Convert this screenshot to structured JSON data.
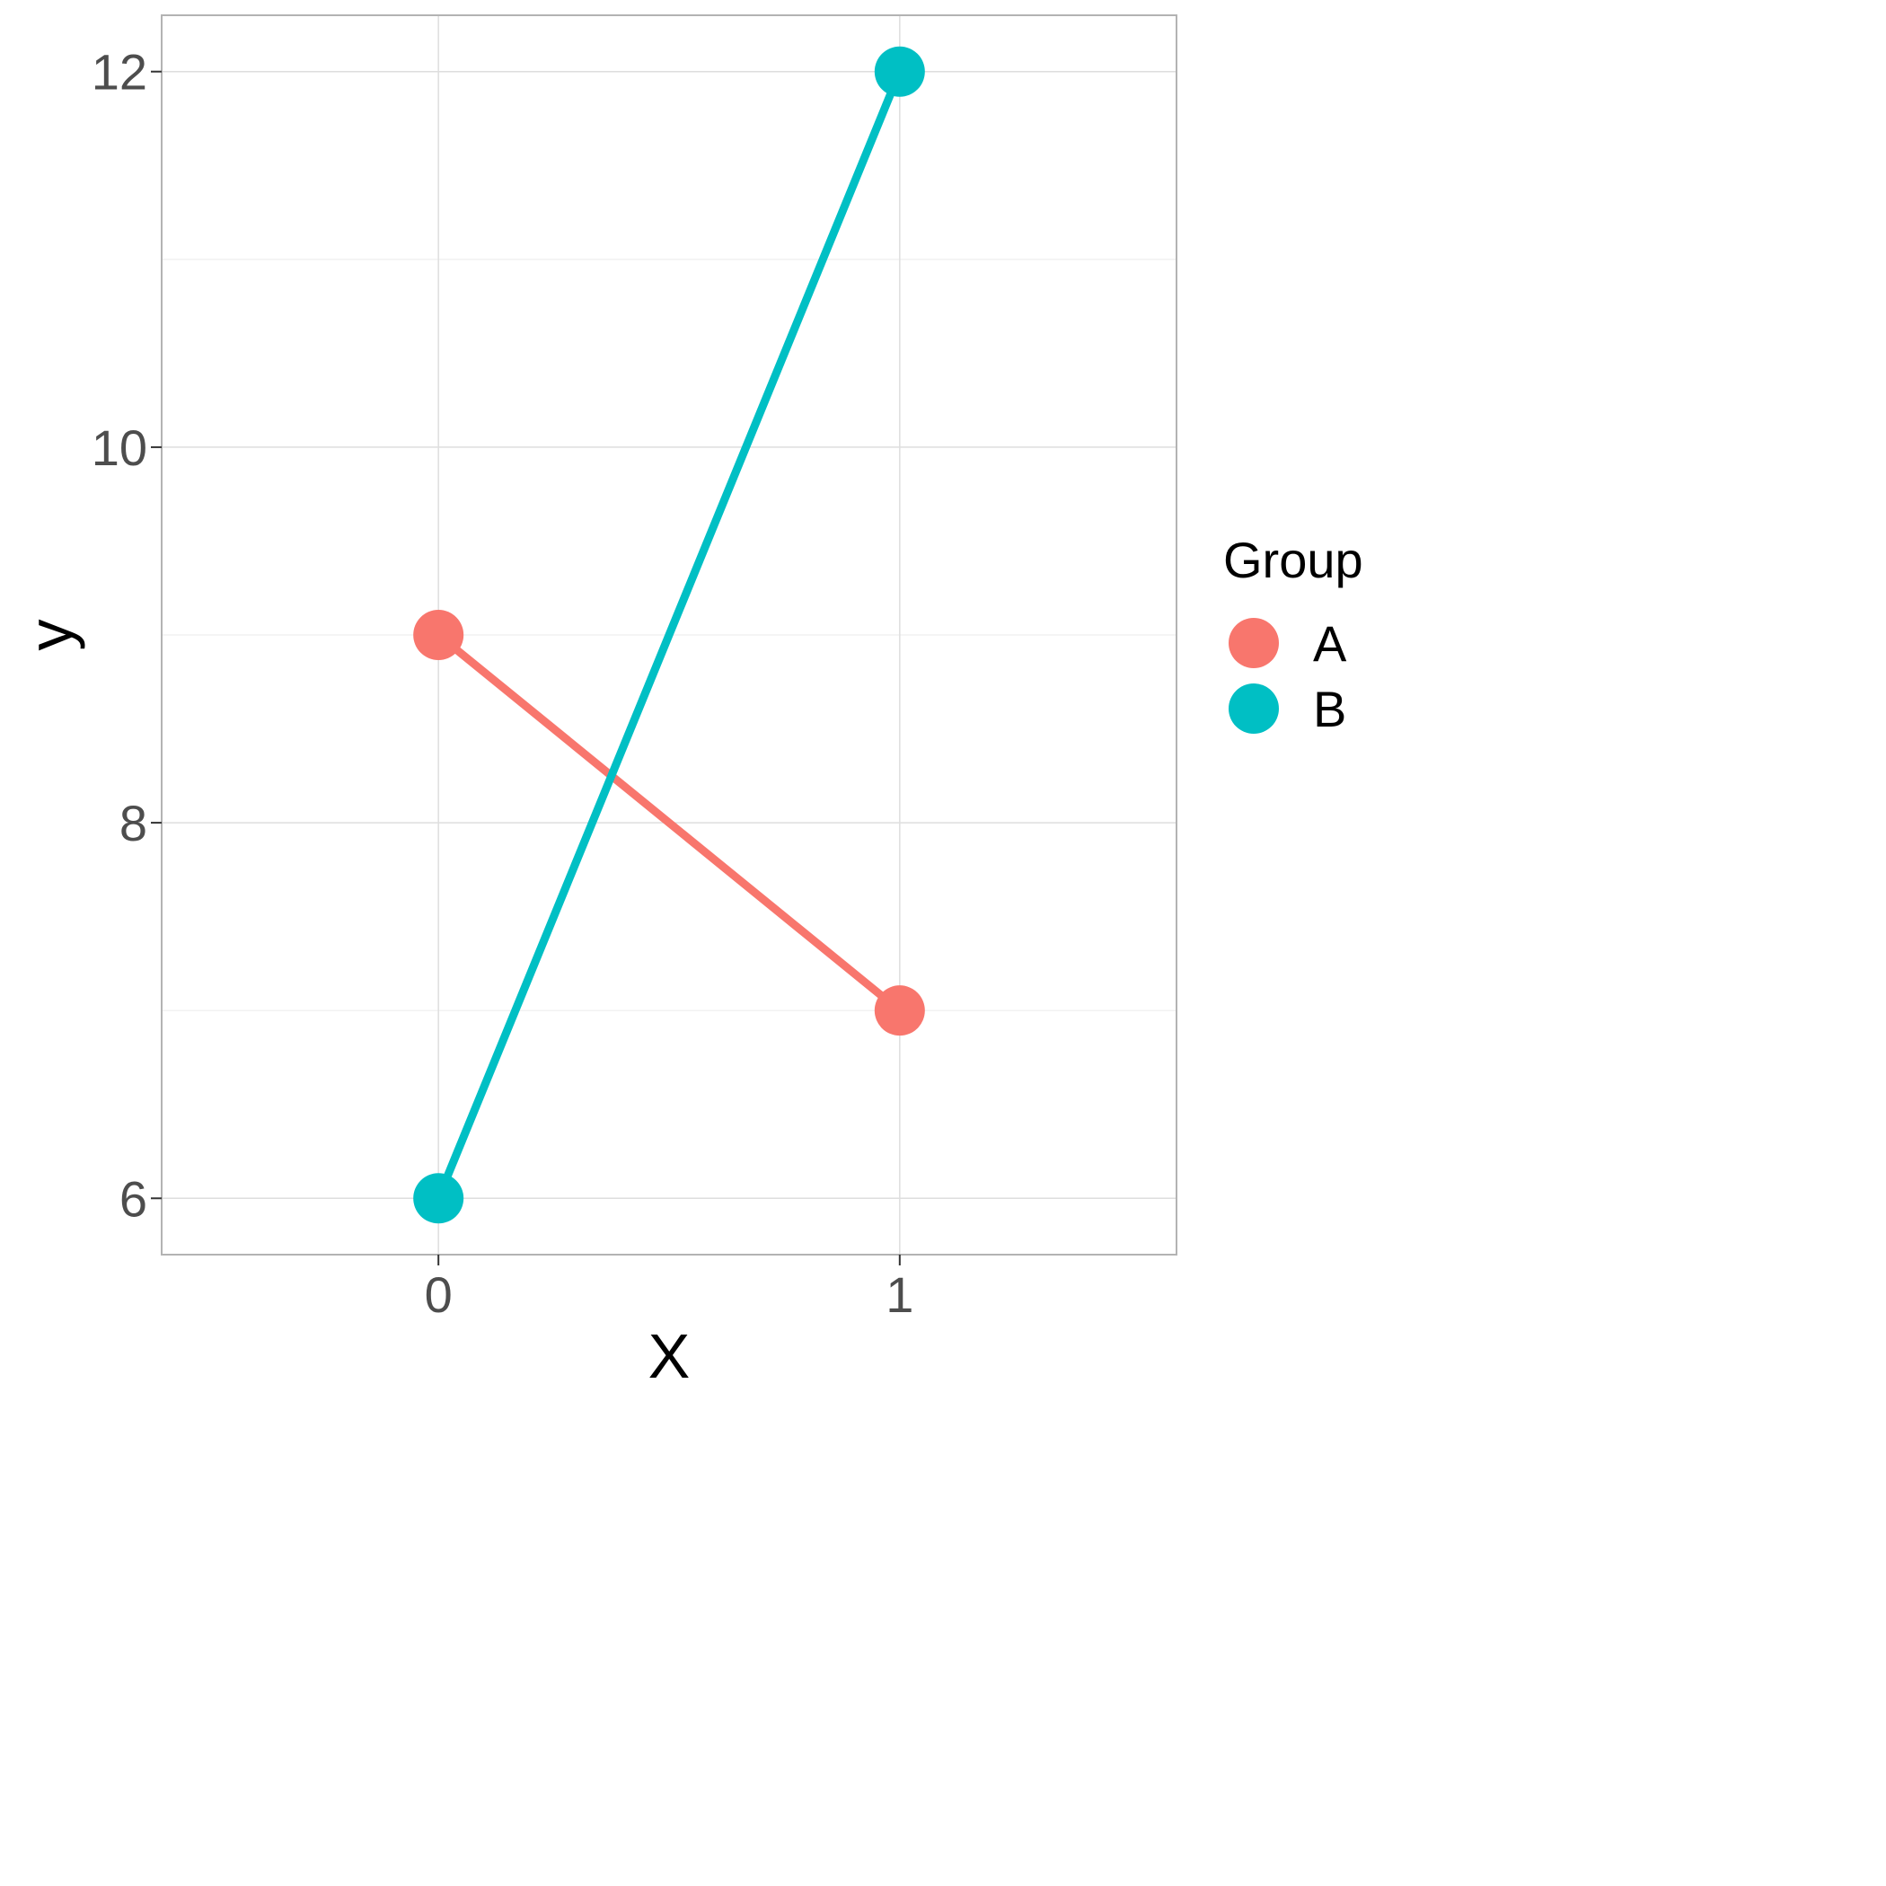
{
  "chart_data": {
    "type": "line",
    "title": "",
    "xlabel": "X",
    "ylabel": "y",
    "x_ticks": [
      "0",
      "1"
    ],
    "y_ticks": [
      "6",
      "8",
      "10",
      "12"
    ],
    "xlim": [
      -0.6,
      1.6
    ],
    "ylim": [
      5.7,
      12.3
    ],
    "grid": true,
    "legend": {
      "title": "Group",
      "placement": "right"
    },
    "series": [
      {
        "name": "A",
        "color": "#F8766D",
        "points": [
          {
            "x": 0,
            "y": 9
          },
          {
            "x": 1,
            "y": 7
          }
        ]
      },
      {
        "name": "B",
        "color": "#00BFC4",
        "points": [
          {
            "x": 0,
            "y": 6
          },
          {
            "x": 1,
            "y": 12
          }
        ]
      }
    ]
  }
}
